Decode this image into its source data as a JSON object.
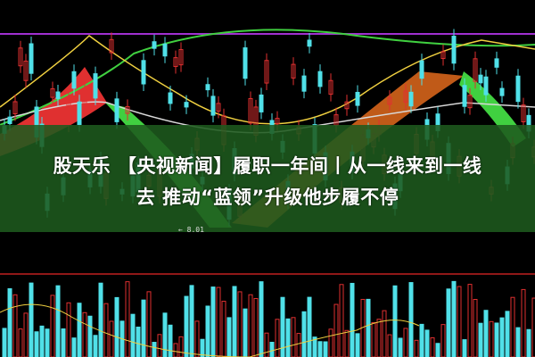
{
  "headline": {
    "line1": "股天乐 【央视新闻】履职一年间丨从一线来到一线",
    "line2": "去 推动“蓝领”升级他步履不停"
  },
  "price_label": "← 8.01",
  "colors": {
    "up": "#e03030",
    "down": "#50e0e8",
    "band": "#1e5a1e",
    "ma_purple": "#b040e0",
    "ma_yellow": "#f0d040",
    "ma_green": "#40d040"
  }
}
